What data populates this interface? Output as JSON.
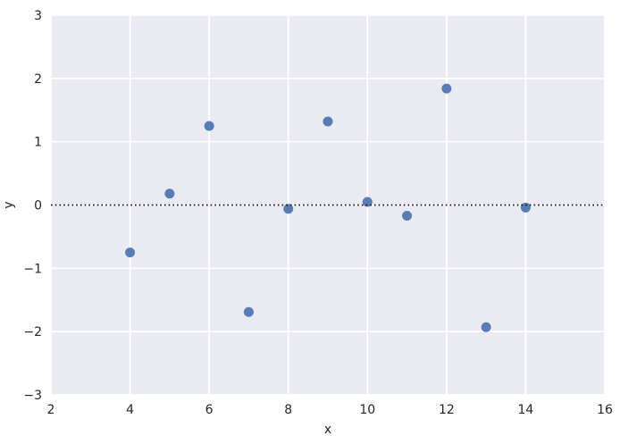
{
  "chart_data": {
    "type": "scatter",
    "title": "",
    "xlabel": "x",
    "ylabel": "y",
    "xlim": [
      2,
      16
    ],
    "ylim": [
      -3,
      3
    ],
    "xticks": [
      2,
      4,
      6,
      8,
      10,
      12,
      14,
      16
    ],
    "yticks": [
      -3,
      -2,
      -1,
      0,
      1,
      2,
      3
    ],
    "grid": true,
    "legend_position": "none",
    "reference_line_y": 0,
    "points": [
      {
        "x": 4,
        "y": -0.75
      },
      {
        "x": 5,
        "y": 0.18
      },
      {
        "x": 6,
        "y": 1.25
      },
      {
        "x": 7,
        "y": -1.69
      },
      {
        "x": 8,
        "y": -0.06
      },
      {
        "x": 9,
        "y": 1.32
      },
      {
        "x": 10,
        "y": 0.05
      },
      {
        "x": 11,
        "y": -0.17
      },
      {
        "x": 12,
        "y": 1.84
      },
      {
        "x": 13,
        "y": -1.93
      },
      {
        "x": 14,
        "y": -0.04
      }
    ],
    "style": {
      "figure_bg": "#ffffff",
      "plot_bg": "#EAEAF2",
      "grid_color": "#ffffff",
      "point_color": "#5A7CB5",
      "refline_color": "#1a1a1a",
      "tick_label_color": "#262626"
    }
  }
}
